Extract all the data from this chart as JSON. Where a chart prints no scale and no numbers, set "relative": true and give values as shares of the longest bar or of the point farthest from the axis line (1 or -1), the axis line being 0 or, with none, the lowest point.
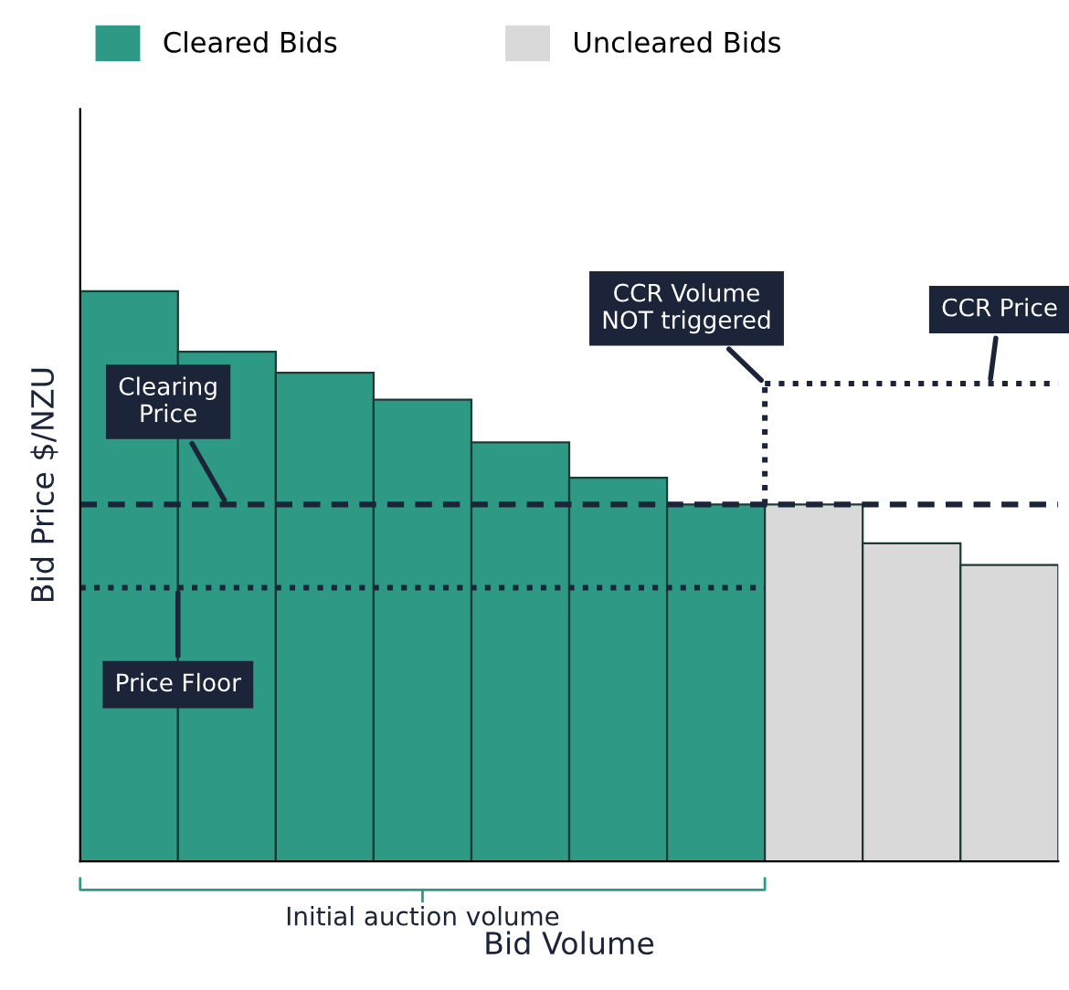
{
  "chart_data": {
    "type": "bar",
    "relative": true,
    "xlabel": "Bid Volume",
    "ylabel": "Bid Price $/NZU",
    "categories": [
      null,
      null,
      null,
      null,
      null,
      null,
      null,
      null,
      null,
      null
    ],
    "values": [
      1,
      0.894,
      0.857,
      0.81,
      0.735,
      0.673,
      0.626,
      0.626,
      0.558,
      0.52
    ],
    "colors": [
      "#2e9a86",
      "#2e9a86",
      "#2e9a86",
      "#2e9a86",
      "#2e9a86",
      "#2e9a86",
      "#2e9a86",
      "#d9d9d9",
      "#d9d9d9",
      "#d9d9d9"
    ],
    "ref_lines": [
      {
        "axis": "y",
        "value": 0.626,
        "label": "Clearing\nPrice",
        "line_style": "dashed",
        "color": "#1b2438"
      },
      {
        "axis": "y",
        "value": 0.48,
        "label": "Price Floor",
        "line_style": "dotted",
        "color": "#1b2438"
      },
      {
        "axis": "y",
        "value": 0.838,
        "label": "CCR Price",
        "line_style": "dotted",
        "color": "#1b2438"
      }
    ],
    "annotations": [
      "Cleared Bids",
      "Uncleared Bids",
      "CCR Volume\nNOT triggered",
      "Initial auction volume"
    ],
    "legend": "top left",
    "grid": false
  }
}
